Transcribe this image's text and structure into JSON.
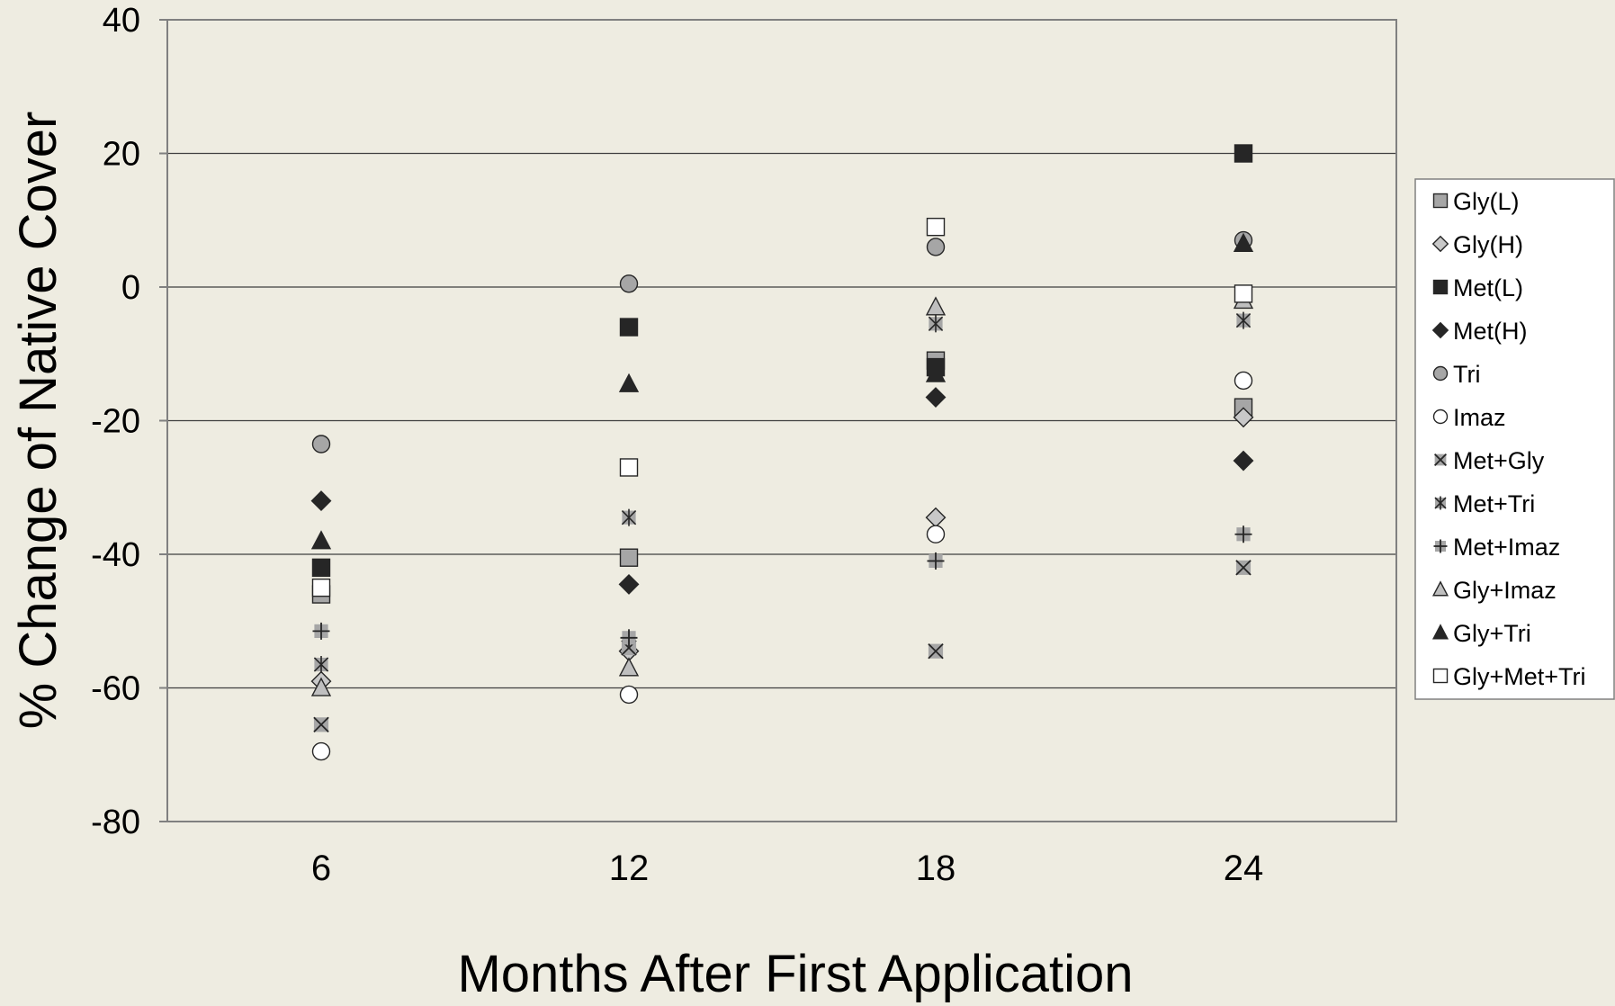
{
  "chart_data": {
    "type": "scatter",
    "title": "",
    "xlabel": "Months After First Application",
    "ylabel": "% Change of Native Cover",
    "categories": [
      "6",
      "12",
      "18",
      "24"
    ],
    "ylim": [
      -80,
      40
    ],
    "yticks": [
      "40",
      "20",
      "0",
      "-20",
      "-40",
      "-60",
      "-80"
    ],
    "grid": "horizontal",
    "legend_position": "right",
    "series": [
      {
        "name": "Gly(L)",
        "marker": "square",
        "fill": "#a6a6a6",
        "values": [
          -46,
          -40.5,
          -11,
          -18
        ]
      },
      {
        "name": "Gly(H)",
        "marker": "diamond",
        "fill": "#c8c8c8",
        "values": [
          -59,
          -54.5,
          -34.5,
          -19.5
        ]
      },
      {
        "name": "Met(L)",
        "marker": "square",
        "fill": "#262626",
        "values": [
          -42,
          -6,
          -12,
          20
        ]
      },
      {
        "name": "Met(H)",
        "marker": "diamond",
        "fill": "#262626",
        "values": [
          -32,
          -44.5,
          -16.5,
          -26
        ]
      },
      {
        "name": "Tri",
        "marker": "circle",
        "fill": "#a6a6a6",
        "values": [
          -23.5,
          0.5,
          6,
          7
        ]
      },
      {
        "name": "Imaz",
        "marker": "circle",
        "fill": "#ffffff",
        "values": [
          -69.5,
          -61,
          -37,
          -14
        ]
      },
      {
        "name": "Met+Gly",
        "marker": "x-square",
        "fill": "#a6a6a6",
        "values": [
          -65.5,
          -54,
          -54.5,
          -42
        ]
      },
      {
        "name": "Met+Tri",
        "marker": "asterisk",
        "fill": "#a6a6a6",
        "values": [
          -56.5,
          -34.5,
          -5.5,
          -5
        ]
      },
      {
        "name": "Met+Imaz",
        "marker": "plus-square",
        "fill": "#a6a6a6",
        "values": [
          -51.5,
          -52.5,
          -41,
          -37
        ]
      },
      {
        "name": "Gly+Imaz",
        "marker": "triangle",
        "fill": "#bfbfbf",
        "values": [
          -60,
          -57,
          -3,
          -2
        ]
      },
      {
        "name": "Gly+Tri",
        "marker": "triangle",
        "fill": "#262626",
        "values": [
          -38,
          -14.5,
          -13,
          6.5
        ]
      },
      {
        "name": "Gly+Met+Tri",
        "marker": "square",
        "fill": "#ffffff",
        "values": [
          -45,
          -27,
          9,
          -1
        ]
      }
    ]
  }
}
